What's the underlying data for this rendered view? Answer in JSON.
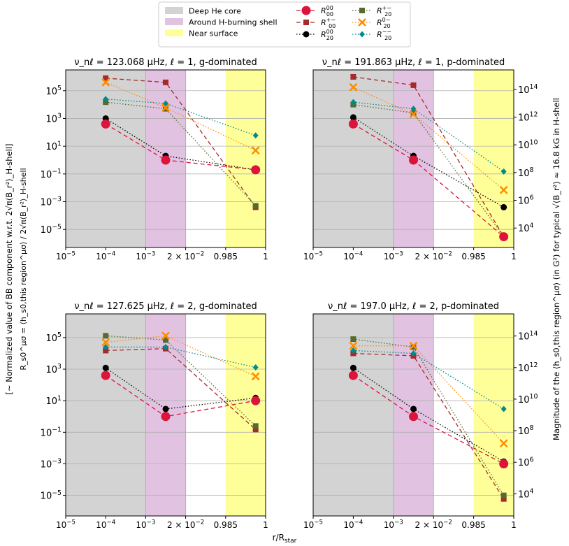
{
  "figure": {
    "xlabel": "r/R",
    "xlabel_sub": "star",
    "left_ylabel": {
      "line1": "[~ Normalized value of BB component w.r.t. 2√π⟨B_r²⟩_H-shell]",
      "line2": "R_s0^μσ = ⟨h_s0,this region^μσ⟩ / 2√π⟨B_r²⟩_H-shell"
    },
    "right_ylabel": "Magnitude of the ⟨h_s0,this region^μσ⟩ (in G²) for typical √⟨B_r²⟩ ≈ 16.8 kG in H-shell"
  },
  "legend": {
    "regions": [
      {
        "label": "Deep He core",
        "color": "#d3d3d3"
      },
      {
        "label": "Around H-burning shell",
        "color": "#e1c3e1"
      },
      {
        "label": "Near surface",
        "color": "#ffff99"
      }
    ],
    "series": [
      {
        "key": "R00_00",
        "label": "R_00^00",
        "color": "#dc143c",
        "marker": "circle",
        "dash": "6,4"
      },
      {
        "key": "R00_pm",
        "label": "R_00^+-",
        "color": "#a52a2a",
        "marker": "square",
        "dash": "6,4"
      },
      {
        "key": "R20_00",
        "label": "R_20^00",
        "color": "#000000",
        "marker": "circle",
        "dash": "1.5,2.5"
      },
      {
        "key": "R20_pm",
        "label": "R_20^+-",
        "color": "#556b2f",
        "marker": "square",
        "dash": "1.5,2.5"
      },
      {
        "key": "R20_mm",
        "label": "R_20^--",
        "color": "#008b8b",
        "marker": "diamond",
        "dash": "1.5,2.5"
      },
      {
        "key": "R20_0m",
        "label": "R_20^0-",
        "color": "#ff8c00",
        "marker": "x",
        "dash": "1.5,2.5"
      }
    ]
  },
  "chart_data": [
    {
      "type": "line",
      "title": "ν_nℓ = 123.068 μHz, ℓ = 1, g-dominated",
      "x_positions": [
        "1e-4",
        "~2e-2",
        "~0.99"
      ],
      "xticks": [
        "10^-5",
        "10^-4",
        "10^-3",
        "2×10^-2",
        "0.985",
        "1"
      ],
      "ylim_log10": [
        -6.3,
        6.5
      ],
      "yticks": [
        "10^-5",
        "10^-3",
        "10^-1",
        "10^1",
        "10^3",
        "10^5"
      ],
      "right_axis": null,
      "series": [
        {
          "key": "R00_00",
          "values": [
            400,
            1.0,
            0.2
          ]
        },
        {
          "key": "R00_pm",
          "values": [
            800000,
            400000,
            0.0004
          ]
        },
        {
          "key": "R20_00",
          "values": [
            1000,
            2.0,
            0.2
          ]
        },
        {
          "key": "R20_pm",
          "values": [
            15000,
            5000,
            0.0005
          ]
        },
        {
          "key": "R20_mm",
          "values": [
            25000,
            12000,
            60
          ]
        },
        {
          "key": "R20_0m",
          "values": [
            400000,
            6000,
            5
          ]
        }
      ]
    },
    {
      "type": "line",
      "title": "ν_nℓ = 191.863 μHz, ℓ = 1, p-dominated",
      "x_positions": [
        "1e-4",
        "~2e-2",
        "~0.99"
      ],
      "xticks": [
        "10^-5",
        "10^-4",
        "10^-3",
        "2×10^-2",
        "0.985",
        "1"
      ],
      "ylim_log10": [
        -6.3,
        6.5
      ],
      "yticks": [],
      "right_axis": {
        "label": "G^2",
        "ticks": [
          "10^4",
          "10^6",
          "10^8",
          "10^10",
          "10^12",
          "10^14"
        ]
      },
      "series": [
        {
          "key": "R00_00",
          "values": [
            400,
            1.0,
            3e-06
          ]
        },
        {
          "key": "R00_pm",
          "values": [
            1000000,
            250000,
            3e-06
          ]
        },
        {
          "key": "R20_00",
          "values": [
            1200,
            2.0,
            0.0004
          ]
        },
        {
          "key": "R20_pm",
          "values": [
            10000,
            2500,
            3e-06
          ]
        },
        {
          "key": "R20_mm",
          "values": [
            15000,
            5000,
            0.15
          ]
        },
        {
          "key": "R20_0m",
          "values": [
            180000,
            2000,
            0.007
          ]
        }
      ]
    },
    {
      "type": "line",
      "title": "ν_nℓ = 127.625 μHz, ℓ = 2, g-dominated",
      "x_positions": [
        "1e-4",
        "~2e-2",
        "~0.99"
      ],
      "xticks": [
        "10^-5",
        "10^-4",
        "10^-3",
        "2×10^-2",
        "0.985",
        "1"
      ],
      "ylim_log10": [
        -6.3,
        6.5
      ],
      "yticks": [
        "10^-5",
        "10^-3",
        "10^-1",
        "10^1",
        "10^3",
        "10^5"
      ],
      "right_axis": null,
      "series": [
        {
          "key": "R00_00",
          "values": [
            400,
            1.0,
            10
          ]
        },
        {
          "key": "R00_pm",
          "values": [
            15000,
            20000,
            0.15
          ]
        },
        {
          "key": "R20_00",
          "values": [
            1200,
            3.0,
            15
          ]
        },
        {
          "key": "R20_pm",
          "values": [
            130000,
            70000,
            0.25
          ]
        },
        {
          "key": "R20_mm",
          "values": [
            25000,
            25000,
            1300
          ]
        },
        {
          "key": "R20_0m",
          "values": [
            50000,
            130000,
            350
          ]
        }
      ]
    },
    {
      "type": "line",
      "title": "ν_nℓ = 197.0 μHz, ℓ = 2, p-dominated",
      "x_positions": [
        "1e-4",
        "~2e-2",
        "~0.99"
      ],
      "xticks": [
        "10^-5",
        "10^-4",
        "10^-3",
        "2×10^-2",
        "0.985",
        "1"
      ],
      "ylim_log10": [
        -6.3,
        6.5
      ],
      "yticks": [],
      "right_axis": {
        "label": "G^2",
        "ticks": [
          "10^4",
          "10^6",
          "10^8",
          "10^10",
          "10^12",
          "10^14"
        ]
      },
      "series": [
        {
          "key": "R00_00",
          "values": [
            400,
            1.0,
            0.001
          ]
        },
        {
          "key": "R00_pm",
          "values": [
            10000,
            7000,
            6e-06
          ]
        },
        {
          "key": "R20_00",
          "values": [
            1200,
            3.0,
            0.0014
          ]
        },
        {
          "key": "R20_pm",
          "values": [
            80000,
            25000,
            1e-05
          ]
        },
        {
          "key": "R20_mm",
          "values": [
            15000,
            10000,
            3
          ]
        },
        {
          "key": "R20_0m",
          "values": [
            30000,
            30000,
            0.02
          ]
        }
      ]
    }
  ]
}
